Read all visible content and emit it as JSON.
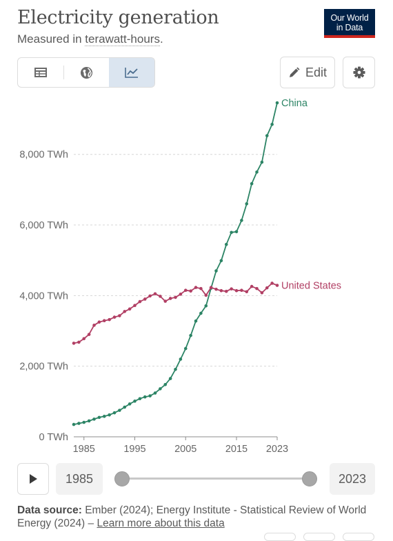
{
  "header": {
    "title": "Electricity generation",
    "subtitle_prefix": "Measured in ",
    "subtitle_unit": "terawatt-hours",
    "subtitle_suffix": ".",
    "logo_line1": "Our World",
    "logo_line2": "in Data"
  },
  "toolbar": {
    "tabs": [
      {
        "name": "table",
        "icon": "table-icon"
      },
      {
        "name": "map",
        "icon": "globe-icon"
      },
      {
        "name": "chart",
        "icon": "line-chart-icon",
        "active": true
      }
    ],
    "edit_label": "Edit",
    "edit_icon": "pencil-icon",
    "settings_icon": "gear-icon"
  },
  "chart_data": {
    "type": "line",
    "x_unit": "year",
    "y_unit": "TWh",
    "xlim": [
      1983,
      2023
    ],
    "ylim": [
      0,
      9500
    ],
    "x_ticks": [
      1985,
      1995,
      2005,
      2015,
      2023
    ],
    "x_tick_labels": [
      "1985",
      "1995",
      "2005",
      "2015",
      "2023"
    ],
    "y_ticks": [
      0,
      2000,
      4000,
      6000,
      8000
    ],
    "y_tick_labels": [
      "0 TWh",
      "2,000 TWh",
      "4,000 TWh",
      "6,000 TWh",
      "8,000 TWh"
    ],
    "grid": "horizontal-dotted",
    "series": [
      {
        "name": "China",
        "color": "#2c8465",
        "label_placement": "end",
        "x": [
          1983,
          1984,
          1985,
          1986,
          1987,
          1988,
          1989,
          1990,
          1991,
          1992,
          1993,
          1994,
          1995,
          1996,
          1997,
          1998,
          1999,
          2000,
          2001,
          2002,
          2003,
          2004,
          2005,
          2006,
          2007,
          2008,
          2009,
          2010,
          2011,
          2012,
          2013,
          2014,
          2015,
          2016,
          2017,
          2018,
          2019,
          2020,
          2021,
          2022,
          2023
        ],
        "y": [
          350,
          380,
          410,
          450,
          500,
          550,
          580,
          620,
          680,
          750,
          840,
          930,
          1010,
          1080,
          1130,
          1160,
          1240,
          1360,
          1480,
          1650,
          1910,
          2200,
          2500,
          2870,
          3280,
          3500,
          3710,
          4210,
          4700,
          4990,
          5450,
          5790,
          5810,
          6130,
          6600,
          7170,
          7500,
          7780,
          8530,
          8850,
          9460
        ]
      },
      {
        "name": "United States",
        "color": "#b13f64",
        "label_placement": "end",
        "x": [
          1983,
          1984,
          1985,
          1986,
          1987,
          1988,
          1989,
          1990,
          1991,
          1992,
          1993,
          1994,
          1995,
          1996,
          1997,
          1998,
          1999,
          2000,
          2001,
          2002,
          2003,
          2004,
          2005,
          2006,
          2007,
          2008,
          2009,
          2010,
          2011,
          2012,
          2013,
          2014,
          2015,
          2016,
          2017,
          2018,
          2019,
          2020,
          2021,
          2022,
          2023
        ],
        "y": [
          2650,
          2680,
          2780,
          2900,
          3160,
          3250,
          3290,
          3320,
          3390,
          3430,
          3550,
          3620,
          3720,
          3830,
          3900,
          3990,
          4050,
          3980,
          3840,
          3920,
          3950,
          4040,
          4150,
          4130,
          4230,
          4200,
          4010,
          4230,
          4180,
          4140,
          4120,
          4190,
          4140,
          4150,
          4110,
          4260,
          4200,
          4080,
          4220,
          4350,
          4290
        ]
      }
    ]
  },
  "timeline": {
    "play_icon": "play-icon",
    "start_label": "1985",
    "end_label": "2023",
    "start_fraction": 0.0,
    "end_fraction": 1.0
  },
  "source": {
    "label": "Data source:",
    "text": " Ember (2024); Energy Institute - Statistical Review of World Energy (2024) – ",
    "link": "Learn more about this data"
  }
}
